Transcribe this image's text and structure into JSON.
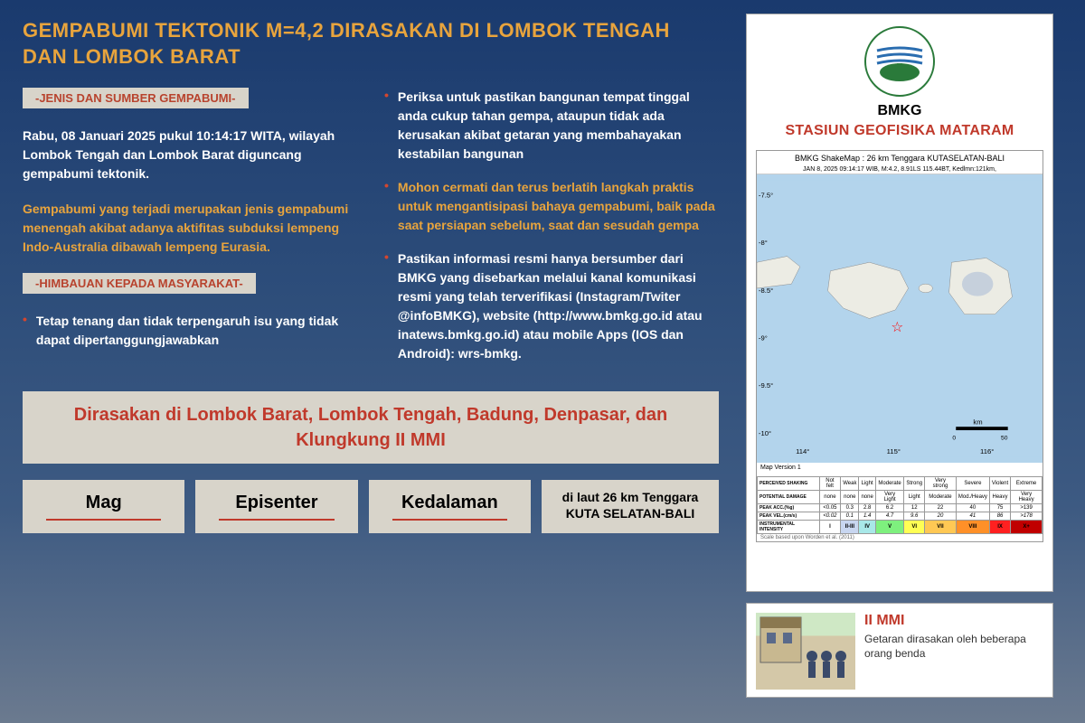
{
  "title": "GEMPABUMI TEKTONIK M=4,2 DIRASAKAN DI LOMBOK TENGAH DAN LOMBOK BARAT",
  "section1_label": "-JENIS DAN SUMBER GEMPABUMI-",
  "datetime_para": "Rabu, 08 Januari 2025 pukul 10:14:17 WITA, wilayah Lombok Tengah dan Lombok Barat diguncang gempabumi tektonik.",
  "type_para": "Gempabumi yang terjadi merupakan jenis gempabumi menengah akibat adanya aktifitas subduksi lempeng Indo-Australia dibawah lempeng Eurasia.",
  "section2_label": "-HIMBAUAN KEPADA MASYARAKAT-",
  "bullets": [
    "Tetap tenang dan tidak terpengaruh isu yang tidak dapat dipertanggungjawabkan",
    "Periksa untuk pastikan bangunan tempat tinggal anda cukup tahan gempa, ataupun tidak ada kerusakan akibat getaran yang membahayakan kestabilan bangunan",
    "Mohon cermati dan terus berlatih langkah praktis untuk mengantisipasi bahaya gempabumi, baik pada saat persiapan sebelum, saat dan sesudah gempa",
    "Pastikan informasi resmi hanya bersumber dari BMKG yang disebarkan melalui kanal komunikasi resmi yang telah terverifikasi (Instagram/Twiter @infoBMKG), website (http://www.bmkg.go.id atau inatews.bmkg.go.id) atau mobile Apps (IOS dan Android): wrs-bmkg."
  ],
  "felt_text": "Dirasakan di Lombok Barat, Lombok Tengah, Badung, Denpasar, dan Klungkung II MMI",
  "stats": {
    "mag_label": "Mag",
    "epi_label": "Episenter",
    "depth_label": "Kedalaman",
    "epi_detail": "di laut 26 km Tenggara KUTA SELATAN-BALI"
  },
  "org": {
    "abbrev": "BMKG",
    "station": "STASIUN GEOFISIKA MATARAM"
  },
  "map": {
    "title": "BMKG ShakeMap : 26 km Tenggara KUTASELATAN-BALI",
    "subtitle": "JAN 8, 2025 09:14:17 WIB, M:4.2, 8.91LS 115.44BT, Kedlmn:121km,",
    "version": "Map Version 1",
    "lat_ticks": [
      "-7.5°",
      "-8°",
      "-8.5°",
      "-9°",
      "-9.5°",
      "-10°"
    ],
    "lon_ticks": [
      "114°",
      "115°",
      "116°"
    ],
    "scale_label": "km",
    "scale_values": "0    50"
  },
  "legend": {
    "rows": [
      [
        "PERCEIVED SHAKING",
        "Not felt",
        "Weak",
        "Light",
        "Moderate",
        "Strong",
        "Very strong",
        "Severe",
        "Violent",
        "Extreme"
      ],
      [
        "POTENTIAL DAMAGE",
        "none",
        "none",
        "none",
        "Very Light",
        "Light",
        "Moderate",
        "Mod./Heavy",
        "Heavy",
        "Very Heavy"
      ],
      [
        "PEAK ACC.(%g)",
        "<0.05",
        "0.3",
        "2.8",
        "6.2",
        "12",
        "22",
        "40",
        "75",
        ">139"
      ],
      [
        "PEAK VEL.(cm/s)",
        "<0.02",
        "0.1",
        "1.4",
        "4.7",
        "9.6",
        "20",
        "41",
        "86",
        ">178"
      ],
      [
        "INSTRUMENTAL INTENSITY",
        "I",
        "II-III",
        "IV",
        "V",
        "VI",
        "VII",
        "VIII",
        "IX",
        "X+"
      ]
    ],
    "colors": [
      "#ffffff",
      "#c8d6f0",
      "#a8e8e8",
      "#7ef07e",
      "#ffff54",
      "#ffc854",
      "#ff9028",
      "#ff2020",
      "#c00000"
    ]
  },
  "mmi": {
    "title": "II MMI",
    "desc": "Getaran dirasakan oleh beberapa orang benda"
  }
}
